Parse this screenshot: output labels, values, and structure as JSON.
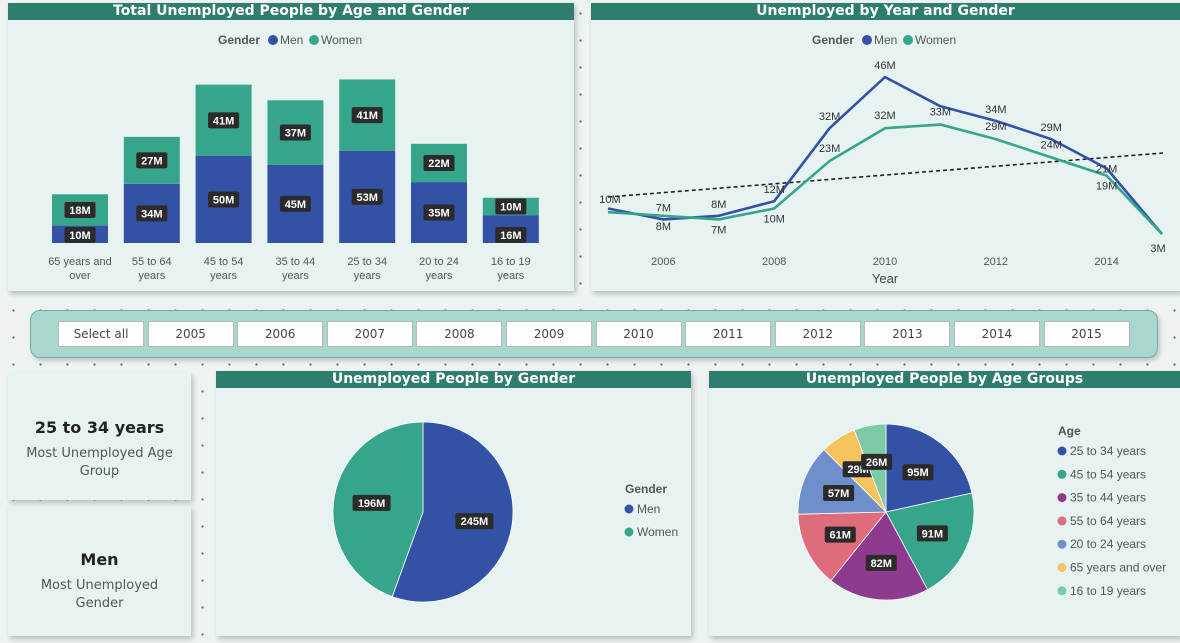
{
  "colors": {
    "men": "#3352a6",
    "women": "#36a58c",
    "header": "#2e7d6e"
  },
  "slicer": {
    "items": [
      "Select all",
      "2005",
      "2006",
      "2007",
      "2008",
      "2009",
      "2010",
      "2011",
      "2012",
      "2013",
      "2014",
      "2015"
    ]
  },
  "kpi": {
    "age_value": "25 to 34 years",
    "age_label": "Most Unemployed Age Group",
    "gender_value": "Men",
    "gender_label": "Most Unemployed Gender"
  },
  "chart_data": [
    {
      "type": "bar",
      "title": "Total Unemployed People by Age and Gender",
      "legend_title": "Gender",
      "legend_position": "top-center",
      "stacked": true,
      "categories": [
        "65 years and over",
        "55 to 64 years",
        "45 to 54 years",
        "35 to 44 years",
        "25 to 34 years",
        "20 to 24 years",
        "16 to 19 years"
      ],
      "series": [
        {
          "name": "Men",
          "values": [
            10,
            34,
            50,
            45,
            53,
            35,
            16
          ],
          "labels": [
            "10M",
            "34M",
            "50M",
            "45M",
            "53M",
            "35M",
            "16M"
          ]
        },
        {
          "name": "Women",
          "values": [
            18,
            27,
            41,
            37,
            41,
            22,
            10
          ],
          "labels": [
            "18M",
            "27M",
            "41M",
            "37M",
            "41M",
            "22M",
            "10M"
          ]
        }
      ]
    },
    {
      "type": "line",
      "title": "Unemployed by Year and Gender",
      "xlabel": "Year",
      "legend_title": "Gender",
      "legend_position": "top-center",
      "x": [
        2005,
        2006,
        2007,
        2008,
        2009,
        2010,
        2011,
        2012,
        2013,
        2014,
        2015
      ],
      "x_ticks": [
        "2006",
        "2008",
        "2010",
        "2012",
        "2014"
      ],
      "series": [
        {
          "name": "Men",
          "values": [
            10,
            7,
            8,
            12,
            32,
            46,
            38,
            34,
            29,
            21,
            3
          ],
          "labels": [
            "10M",
            "7M",
            "8M",
            "12M",
            "32M",
            "46M",
            "",
            "34M",
            "29M",
            "21M",
            "3M"
          ]
        },
        {
          "name": "Women",
          "values": [
            9,
            8,
            7,
            10,
            23,
            32,
            33,
            29,
            24,
            19,
            3
          ],
          "labels": [
            "",
            "8M",
            "7M",
            "10M",
            "23M",
            "32M",
            "33M",
            "29M",
            "24M",
            "19M",
            ""
          ]
        }
      ],
      "trend_line": true
    },
    {
      "type": "pie",
      "title": "Unemployed People by Gender",
      "legend_title": "Gender",
      "legend_position": "right",
      "slices": [
        {
          "name": "Men",
          "value": 245,
          "label": "245M",
          "color": "#3352a6"
        },
        {
          "name": "Women",
          "value": 196,
          "label": "196M",
          "color": "#36a58c"
        }
      ]
    },
    {
      "type": "pie",
      "title": "Unemployed People by Age Groups",
      "legend_title": "Age",
      "legend_position": "right",
      "slices": [
        {
          "name": "25 to 34 years",
          "value": 95,
          "label": "95M",
          "color": "#3352a6"
        },
        {
          "name": "45 to 54 years",
          "value": 91,
          "label": "91M",
          "color": "#36a58c"
        },
        {
          "name": "35 to 44 years",
          "value": 82,
          "label": "82M",
          "color": "#8e3a8e"
        },
        {
          "name": "55 to 64 years",
          "value": 61,
          "label": "61M",
          "color": "#df6b7b"
        },
        {
          "name": "20 to 24 years",
          "value": 57,
          "label": "57M",
          "color": "#6e8fcb"
        },
        {
          "name": "65 years and over",
          "value": 29,
          "label": "29M",
          "color": "#f5c45e"
        },
        {
          "name": "16 to 19 years",
          "value": 26,
          "label": "26M",
          "color": "#7ec9a6"
        }
      ]
    }
  ]
}
